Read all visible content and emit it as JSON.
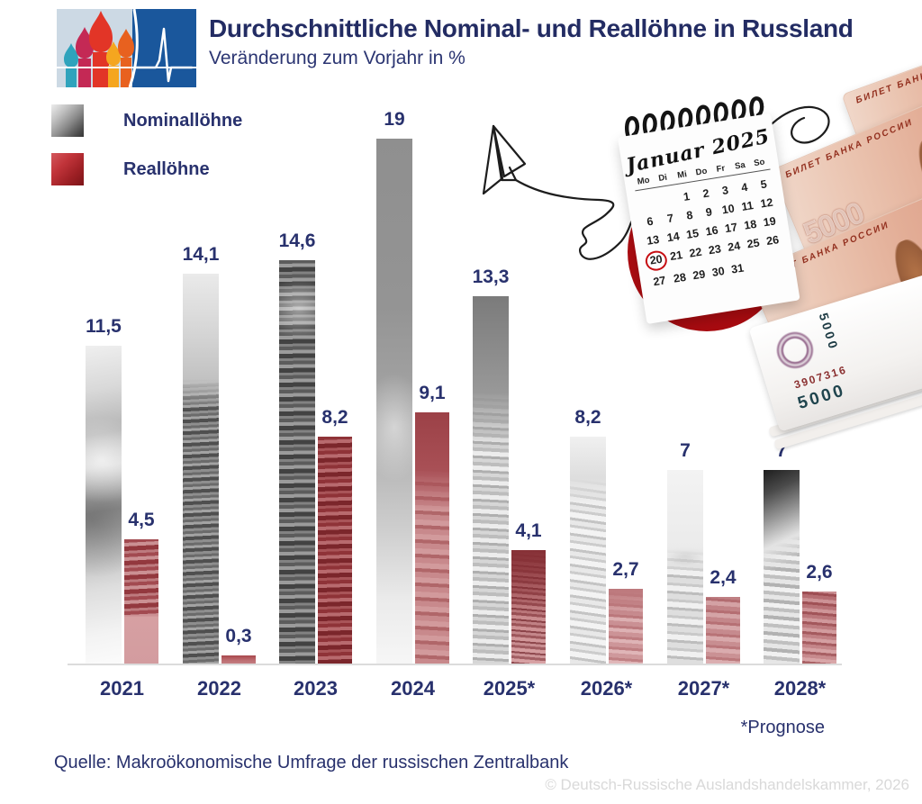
{
  "header": {
    "title": "Durchschnittliche Nominal- und Reallöhne in Russland",
    "subtitle": "Veränderung zum Vorjahr in %"
  },
  "legend": {
    "items": [
      {
        "label": "Nominallöhne",
        "swatch": "#8a8a8a"
      },
      {
        "label": "Reallöhne",
        "swatch": "#b2282e"
      }
    ]
  },
  "chart_data": {
    "type": "bar",
    "title": "Durchschnittliche Nominal- und Reallöhne in Russland",
    "subtitle": "Veränderung zum Vorjahr in %",
    "unit": "%",
    "categories": [
      "2021",
      "2022",
      "2023",
      "2024",
      "2025*",
      "2026*",
      "2027*",
      "2028*"
    ],
    "series": [
      {
        "name": "Nominallöhne",
        "color": "#8a8a8a",
        "values": [
          11.5,
          14.1,
          14.6,
          19,
          13.3,
          8.2,
          7,
          7
        ],
        "labels": [
          "11,5",
          "14,1",
          "14,6",
          "19",
          "13,3",
          "8,2",
          "7",
          "7"
        ]
      },
      {
        "name": "Reallöhne",
        "color": "#b5464c",
        "values": [
          4.5,
          0.3,
          8.2,
          9.1,
          4.1,
          2.7,
          2.4,
          2.6
        ],
        "labels": [
          "4,5",
          "0,3",
          "8,2",
          "9,1",
          "4,1",
          "2,7",
          "2,4",
          "2,6"
        ]
      }
    ],
    "ylim": [
      0,
      19
    ],
    "grid": false,
    "legend_position": "top-left",
    "footnote": "*Prognose"
  },
  "footer": {
    "footnote": "*Prognose",
    "source": "Quelle: Makroökonomische Umfrage der russischen Zentralbank",
    "copyright": "© Deutsch-Russische Auslandshandelskammer, 2026"
  },
  "decor": {
    "calendar": {
      "month_title": "Januar 2025",
      "weekdays": [
        "Mo",
        "Di",
        "Mi",
        "Do",
        "Fr",
        "Sa",
        "So"
      ],
      "weeks": [
        [
          "",
          "",
          "1",
          "2",
          "3",
          "4",
          "5"
        ],
        [
          "6",
          "7",
          "8",
          "9",
          "10",
          "11",
          "12"
        ],
        [
          "13",
          "14",
          "15",
          "16",
          "17",
          "18",
          "19"
        ],
        [
          "20",
          "21",
          "22",
          "23",
          "24",
          "25",
          "26"
        ],
        [
          "27",
          "28",
          "29",
          "30",
          "31",
          "",
          ""
        ]
      ],
      "highlighted_day": "20"
    },
    "banknote": {
      "issuer_text": "БИЛЕТ БАНКА РОССИИ",
      "denomination": "5000",
      "serial": "3907316"
    },
    "accent_red": "#b00e13"
  }
}
